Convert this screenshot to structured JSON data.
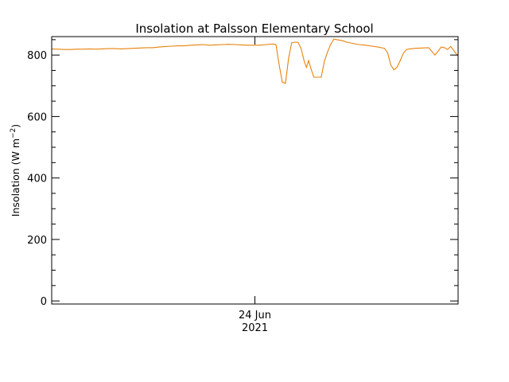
{
  "chart_data": {
    "type": "line",
    "title": "Insolation at Palsson Elementary School",
    "ylabel_main": "Insolation (W m",
    "ylabel_exp": "−2",
    "ylabel_close": ")",
    "xlabel": "",
    "ylim": [
      -10,
      860
    ],
    "yticks": [
      0,
      200,
      400,
      600,
      800
    ],
    "y_minor_step": 50,
    "x_range_hours": [
      0,
      38.6
    ],
    "x_ticks": [
      {
        "x": 19.3,
        "label_line1": "24 Jun",
        "label_line2": "2021"
      }
    ],
    "grid": false,
    "series": [
      {
        "color": "#e8820c",
        "points": [
          [
            0.0,
            820
          ],
          [
            0.6,
            819
          ],
          [
            1.2,
            818
          ],
          [
            1.8,
            818
          ],
          [
            2.4,
            819
          ],
          [
            3.0,
            819
          ],
          [
            3.6,
            820
          ],
          [
            4.2,
            819
          ],
          [
            4.8,
            820
          ],
          [
            5.4,
            821
          ],
          [
            6.0,
            821
          ],
          [
            6.6,
            820
          ],
          [
            7.2,
            821
          ],
          [
            7.8,
            822
          ],
          [
            8.4,
            823
          ],
          [
            9.0,
            824
          ],
          [
            9.6,
            824
          ],
          [
            10.2,
            826
          ],
          [
            10.8,
            828
          ],
          [
            11.4,
            829
          ],
          [
            12.0,
            830
          ],
          [
            12.6,
            830
          ],
          [
            13.2,
            832
          ],
          [
            13.8,
            833
          ],
          [
            14.4,
            834
          ],
          [
            15.0,
            832
          ],
          [
            15.6,
            833
          ],
          [
            16.2,
            834
          ],
          [
            16.8,
            835
          ],
          [
            17.4,
            834
          ],
          [
            18.0,
            833
          ],
          [
            18.6,
            832
          ],
          [
            19.2,
            832
          ],
          [
            19.8,
            832
          ],
          [
            20.4,
            834
          ],
          [
            21.0,
            836
          ],
          [
            21.3,
            834
          ],
          [
            21.6,
            770
          ],
          [
            21.9,
            712
          ],
          [
            22.2,
            708
          ],
          [
            22.5,
            790
          ],
          [
            22.8,
            840
          ],
          [
            23.1,
            842
          ],
          [
            23.4,
            841
          ],
          [
            23.7,
            820
          ],
          [
            24.0,
            778
          ],
          [
            24.2,
            760
          ],
          [
            24.4,
            782
          ],
          [
            24.6,
            758
          ],
          [
            24.9,
            728
          ],
          [
            25.2,
            728
          ],
          [
            25.6,
            728
          ],
          [
            25.9,
            780
          ],
          [
            26.2,
            810
          ],
          [
            26.5,
            835
          ],
          [
            26.8,
            852
          ],
          [
            27.1,
            850
          ],
          [
            27.4,
            848
          ],
          [
            27.7,
            846
          ],
          [
            28.0,
            842
          ],
          [
            28.6,
            838
          ],
          [
            29.2,
            834
          ],
          [
            29.8,
            832
          ],
          [
            30.4,
            829
          ],
          [
            31.0,
            826
          ],
          [
            31.6,
            822
          ],
          [
            31.9,
            808
          ],
          [
            32.2,
            768
          ],
          [
            32.5,
            752
          ],
          [
            32.8,
            760
          ],
          [
            33.1,
            782
          ],
          [
            33.4,
            806
          ],
          [
            33.7,
            818
          ],
          [
            34.0,
            820
          ],
          [
            34.6,
            822
          ],
          [
            35.2,
            823
          ],
          [
            35.8,
            824
          ],
          [
            36.1,
            812
          ],
          [
            36.4,
            800
          ],
          [
            36.7,
            812
          ],
          [
            37.0,
            826
          ],
          [
            37.3,
            824
          ],
          [
            37.6,
            818
          ],
          [
            37.9,
            828
          ],
          [
            38.2,
            815
          ],
          [
            38.5,
            800
          ]
        ]
      }
    ],
    "series_tail": [
      [
        38.5,
        800
      ],
      [
        38.6,
        802
      ]
    ]
  }
}
